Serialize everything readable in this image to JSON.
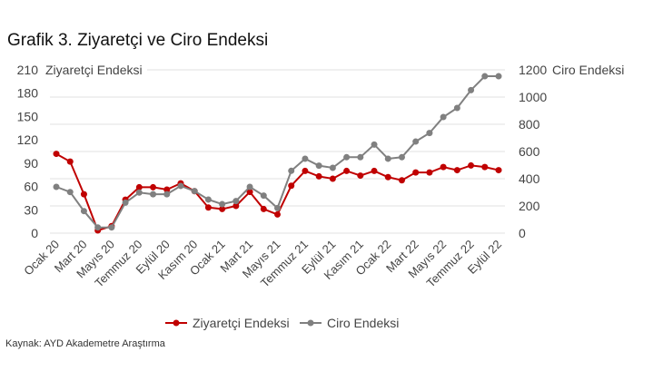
{
  "title": "Grafik 3. Ziyaretçi ve Ciro Endeksi",
  "source": "Kaynak: AYD Akademetre Araştırma",
  "chart_data": {
    "type": "line",
    "title": "Grafik 3. Ziyaretçi ve Ciro Endeksi",
    "ylabel_left": "Ziyaretçi Endeksi",
    "ylabel_right": "Ciro Endeksi",
    "ylim_left": [
      0,
      210
    ],
    "yticks_left": [
      0,
      30,
      60,
      90,
      120,
      150,
      180,
      210
    ],
    "ylim_right": [
      0,
      1200
    ],
    "yticks_right": [
      0,
      200,
      400,
      600,
      800,
      1000,
      1200
    ],
    "grid": true,
    "legend": "bottom",
    "x": [
      "Ocak 20",
      "Şubat 20",
      "Mart 20",
      "Nisan 20",
      "Mayıs 20",
      "Haziran 20",
      "Temmuz 20",
      "Ağustos 20",
      "Eylül 20",
      "Ekim 20",
      "Kasım 20",
      "Aralık 20",
      "Ocak 21",
      "Şubat 21",
      "Mart 21",
      "Nisan 21",
      "Mayıs 21",
      "Haziran 21",
      "Temmuz 21",
      "Ağustos 21",
      "Eylül 21",
      "Ekim 21",
      "Kasım 21",
      "Aralık 21",
      "Ocak 22",
      "Şubat 22",
      "Mart 22",
      "Nisan 22",
      "Mayıs 22",
      "Haziran 22",
      "Temmuz 22",
      "Ağustos 22",
      "Eylül 22"
    ],
    "xtick_labels": [
      "Ocak 20",
      "Mart 20",
      "Mayıs 20",
      "Temmuz 20",
      "Eylül 20",
      "Kasım 20",
      "Ocak 21",
      "Mart 21",
      "Mayıs 21",
      "Temmuz 21",
      "Eylül 21",
      "Kasım 21",
      "Ocak 22",
      "Mart 22",
      "Mayıs 22",
      "Temmuz 22",
      "Eylül 22"
    ],
    "series": [
      {
        "name": "Ziyaretçi Endeksi",
        "axis": "left",
        "color": "#c00000",
        "values": [
          102,
          92,
          50,
          3.5,
          9,
          43,
          59,
          59,
          56,
          64,
          54,
          33,
          31,
          35,
          53,
          31,
          24,
          61,
          80,
          73,
          70,
          80,
          74,
          80,
          72,
          68,
          78,
          78,
          85,
          81,
          87,
          85,
          81
        ]
      },
      {
        "name": "Ciro Endeksi",
        "axis": "right",
        "color": "#808080",
        "values": [
          340,
          302,
          162,
          42,
          42,
          224,
          298,
          286,
          286,
          347,
          309,
          247,
          213,
          236,
          340,
          276,
          184,
          458,
          547,
          496,
          480,
          558,
          558,
          651,
          547,
          558,
          673,
          736,
          853,
          920,
          1051,
          1153,
          1153
        ]
      }
    ]
  }
}
